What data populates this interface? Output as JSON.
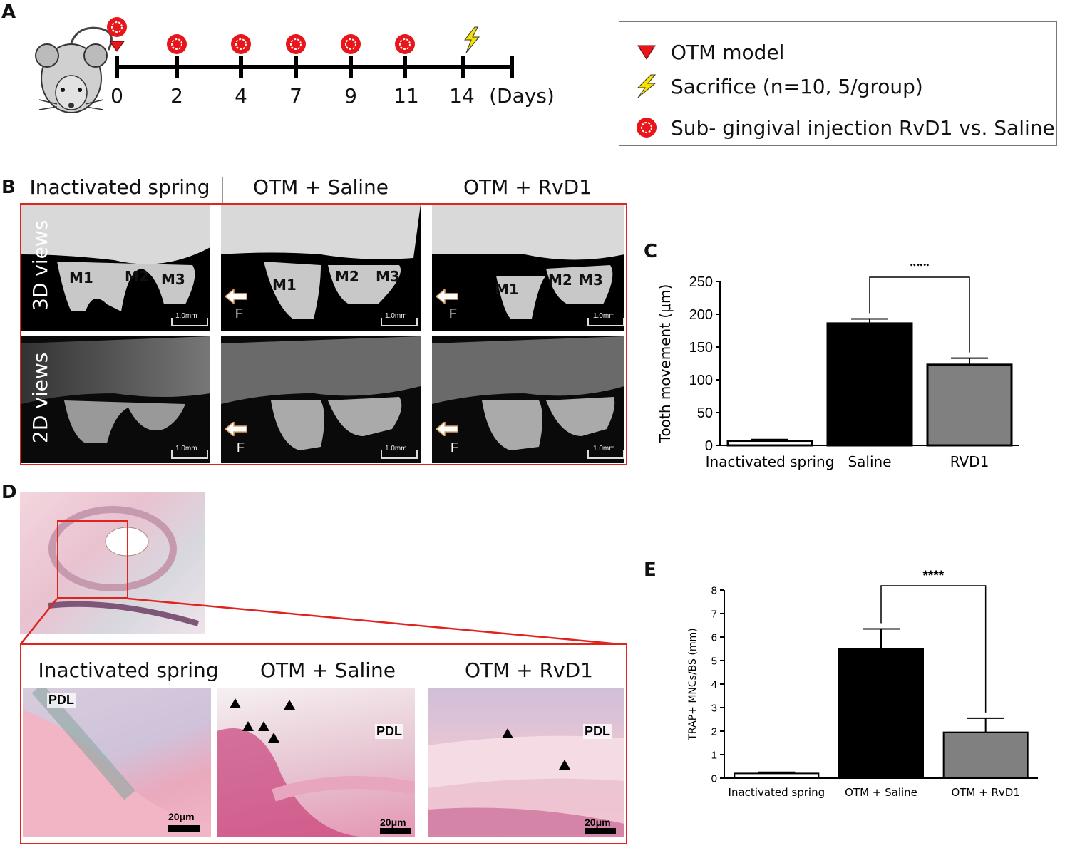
{
  "panels": {
    "A": "A",
    "B": "B",
    "C": "C",
    "D": "D",
    "E": "E"
  },
  "timeline": {
    "days": [
      "0",
      "2",
      "4",
      "7",
      "9",
      "11",
      "14"
    ],
    "unit": "(Days)"
  },
  "legend": {
    "items": [
      {
        "icon": "red-triangle-icon",
        "label": "OTM model"
      },
      {
        "icon": "lightning-icon",
        "label": "Sacrifice (n=10, 5/group)"
      },
      {
        "icon": "injection-icon",
        "label": "Sub- gingival injection RvD1 vs. Saline"
      }
    ]
  },
  "panel_b": {
    "columns": [
      "Inactivated spring",
      "OTM + Saline",
      "OTM + RvD1"
    ],
    "rows": [
      "3D views",
      "2D views"
    ],
    "teeth": [
      "M1",
      "M2",
      "M3"
    ],
    "scale": "1.0mm",
    "force_label": "F"
  },
  "panel_d": {
    "columns": [
      "Inactivated spring",
      "OTM + Saline",
      "OTM + RvD1"
    ],
    "pdl": "PDL",
    "scale": "20μm"
  },
  "colors": {
    "frame": "#e0231c",
    "saline": "#000000",
    "rvd1": "#808080",
    "spring": "#ffffff"
  },
  "chart_data": [
    {
      "type": "bar",
      "panel": "C",
      "categories": [
        "Inactivated spring",
        "Saline",
        "RVD1"
      ],
      "values": [
        7,
        186,
        123
      ],
      "errors": [
        2,
        7,
        10
      ],
      "ylabel": "Tooth movement (μm)",
      "ylim": [
        0,
        250
      ],
      "yticks": [
        "0",
        "50",
        "100",
        "150",
        "200",
        "250"
      ],
      "significance": {
        "from": 1,
        "to": 2,
        "label": "***"
      }
    },
    {
      "type": "bar",
      "panel": "E",
      "categories": [
        "Inactivated spring",
        "OTM + Saline",
        "OTM + RvD1"
      ],
      "values": [
        0.2,
        5.5,
        1.95
      ],
      "errors": [
        0.05,
        0.85,
        0.6
      ],
      "ylabel": "TRAP+ MNCs/BS (mm)",
      "ylim": [
        0,
        8
      ],
      "yticks": [
        "0",
        "1",
        "2",
        "3",
        "4",
        "5",
        "6",
        "7",
        "8"
      ],
      "significance": {
        "from": 1,
        "to": 2,
        "label": "****"
      }
    }
  ]
}
